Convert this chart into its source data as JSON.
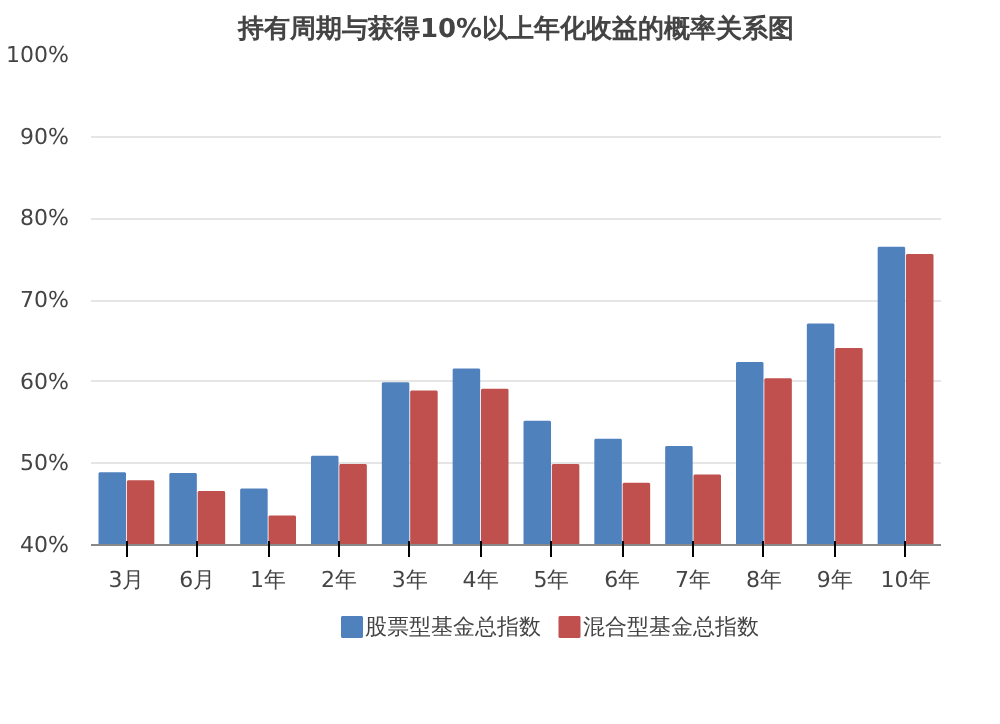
{
  "chart_data": {
    "type": "bar",
    "title": "持有周期与获得10%以上年化收益的概率关系图",
    "categories": [
      "3月",
      "6月",
      "1年",
      "2年",
      "3年",
      "4年",
      "5年",
      "6年",
      "7年",
      "8年",
      "9年",
      "10年"
    ],
    "series": [
      {
        "name": "股票型基金总指数",
        "color": "#4f81bd",
        "values": [
          48.8,
          48.7,
          46.8,
          50.8,
          59.8,
          61.5,
          55.1,
          52.9,
          52,
          62.3,
          67,
          76.4
        ]
      },
      {
        "name": "混合型基金总指数",
        "color": "#c0504d",
        "values": [
          47.8,
          46.5,
          43.5,
          49.8,
          58.8,
          59,
          49.8,
          47.5,
          48.5,
          60.3,
          64,
          75.5
        ]
      }
    ],
    "ylim": [
      40,
      100
    ],
    "yticks": [
      {
        "value": 40,
        "label": "40%"
      },
      {
        "value": 50,
        "label": "50%"
      },
      {
        "value": 60,
        "label": "60%"
      },
      {
        "value": 70,
        "label": "70%"
      },
      {
        "value": 80,
        "label": "80%"
      },
      {
        "value": 90,
        "label": "90%"
      },
      {
        "value": 100,
        "label": "100%"
      }
    ],
    "grid": "y",
    "legend": "bottom"
  }
}
